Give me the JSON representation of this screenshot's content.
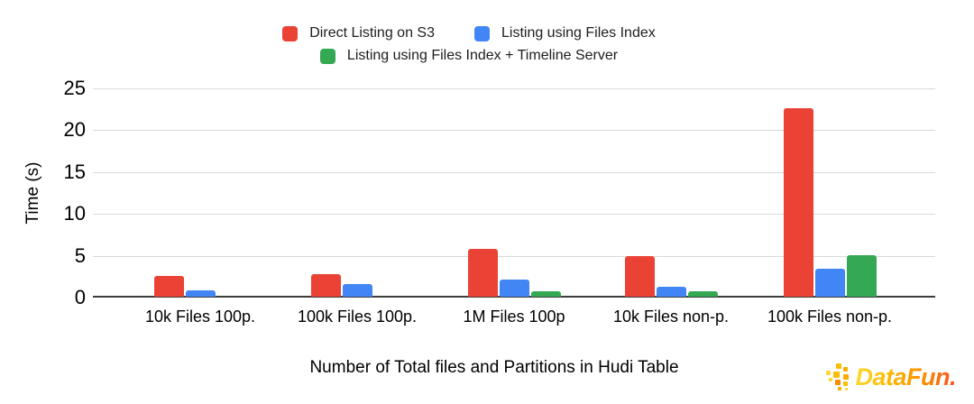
{
  "chart_data": {
    "type": "bar",
    "title": "",
    "categories": [
      "10k Files 100p.",
      "100k Files 100p.",
      "1M Files 100p",
      "10k Files non-p.",
      "100k Files non-p."
    ],
    "series": [
      {
        "name": "Direct Listing on S3",
        "color": "#EA4335",
        "values": [
          2.5,
          2.7,
          5.7,
          4.8,
          22.5
        ]
      },
      {
        "name": "Listing using Files Index",
        "color": "#4285F4",
        "values": [
          0.8,
          1.5,
          2.0,
          1.2,
          3.3
        ]
      },
      {
        "name": "Listing using Files Index + Timeline Server",
        "color": "#34A853",
        "values": [
          0,
          0,
          0.6,
          0.6,
          5.0
        ]
      }
    ],
    "xlabel": "Number of Total files and Partitions in Hudi Table",
    "ylabel": "Time (s)",
    "ylim": [
      0,
      25
    ],
    "yticks": [
      0,
      5,
      10,
      15,
      20,
      25
    ],
    "grid": true,
    "legend_position": "top",
    "gridline_color": "#d9d9d9",
    "axis_line_color": "#3d3d3d"
  },
  "logo": {
    "text": "DataFun."
  }
}
